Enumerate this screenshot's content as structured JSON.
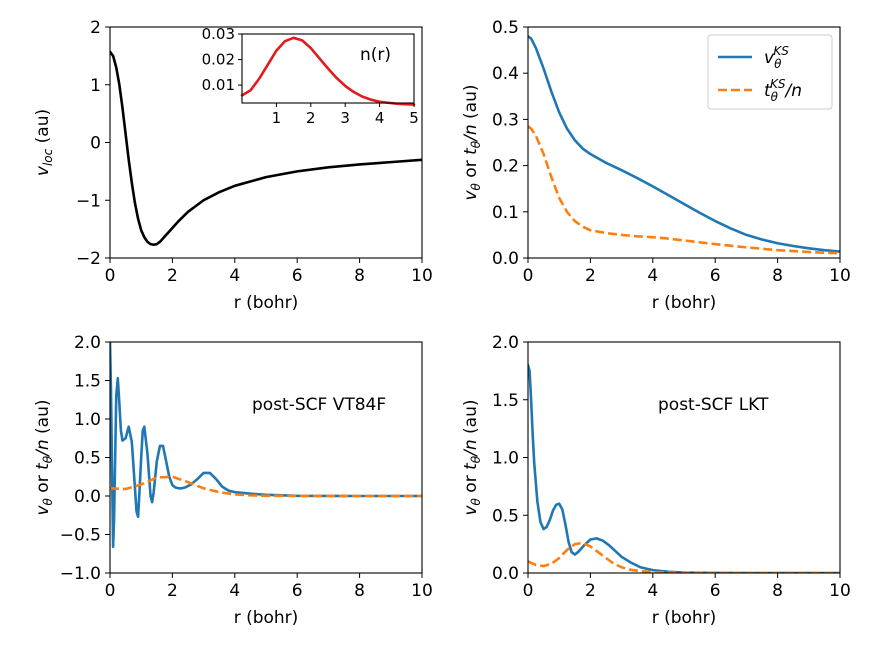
{
  "colors": {
    "blue": "#1f77b4",
    "orange": "#ff7f0e",
    "black": "#000000",
    "red": "#e31a1c"
  },
  "chart_data": [
    {
      "id": "top-left",
      "type": "line",
      "xlabel": "r (bohr)",
      "ylabel": "v_loc (au)",
      "xlim": [
        0,
        10
      ],
      "ylim": [
        -2,
        2
      ],
      "xticks": [
        "0",
        "2",
        "4",
        "6",
        "8",
        "10"
      ],
      "yticks": [
        "−2",
        "−1",
        "0",
        "1",
        "2"
      ],
      "series": [
        {
          "name": "v_loc",
          "color": "#000000",
          "dash": "solid",
          "x": [
            0,
            0.1,
            0.2,
            0.3,
            0.4,
            0.5,
            0.6,
            0.7,
            0.8,
            0.9,
            1.0,
            1.1,
            1.2,
            1.3,
            1.4,
            1.5,
            1.6,
            1.7,
            1.8,
            2.0,
            2.2,
            2.5,
            3.0,
            3.5,
            4.0,
            5.0,
            6.0,
            7.0,
            8.0,
            9.0,
            10.0
          ],
          "y": [
            1.57,
            1.5,
            1.3,
            1.0,
            0.6,
            0.15,
            -0.3,
            -0.7,
            -1.05,
            -1.32,
            -1.52,
            -1.64,
            -1.72,
            -1.76,
            -1.77,
            -1.76,
            -1.72,
            -1.66,
            -1.6,
            -1.48,
            -1.36,
            -1.2,
            -1.0,
            -0.86,
            -0.75,
            -0.6,
            -0.5,
            -0.43,
            -0.38,
            -0.34,
            -0.3
          ]
        }
      ],
      "inset": {
        "label": "n(r)",
        "xlim": [
          0,
          5
        ],
        "ylim": [
          0.003,
          0.03
        ],
        "xticks": [
          "1",
          "2",
          "3",
          "4",
          "5"
        ],
        "yticks": [
          "0.01",
          "0.02",
          "0.03"
        ],
        "series": [
          {
            "name": "n(r)",
            "color": "#e31a1c",
            "x": [
              0,
              0.25,
              0.5,
              0.75,
              1.0,
              1.25,
              1.5,
              1.75,
              2.0,
              2.25,
              2.5,
              2.75,
              3.0,
              3.25,
              3.5,
              3.75,
              4.0,
              4.5,
              5.0
            ],
            "y": [
              0.006,
              0.008,
              0.0125,
              0.018,
              0.0235,
              0.0272,
              0.0285,
              0.0275,
              0.0245,
              0.0205,
              0.0165,
              0.0128,
              0.0097,
              0.0073,
              0.0055,
              0.0043,
              0.0035,
              0.0027,
              0.0024
            ]
          }
        ]
      }
    },
    {
      "id": "top-right",
      "type": "line",
      "xlabel": "r (bohr)",
      "ylabel": "v_θ or t_θ/n (au)",
      "xlim": [
        0,
        10
      ],
      "ylim": [
        0,
        0.5
      ],
      "xticks": [
        "0",
        "2",
        "4",
        "6",
        "8",
        "10"
      ],
      "yticks": [
        "0.0",
        "0.1",
        "0.2",
        "0.3",
        "0.4",
        "0.5"
      ],
      "legend": {
        "position": "top-right",
        "entries": [
          "v_θ^KS",
          "t_θ^KS/n"
        ]
      },
      "series": [
        {
          "name": "v_θ^KS",
          "color": "#1f77b4",
          "dash": "solid",
          "x": [
            0,
            0.1,
            0.25,
            0.5,
            0.75,
            1.0,
            1.25,
            1.5,
            1.75,
            2.0,
            2.5,
            3.0,
            3.5,
            4.0,
            4.5,
            5.0,
            5.5,
            6.0,
            6.5,
            7.0,
            7.5,
            8.0,
            8.5,
            9.0,
            9.5,
            10.0
          ],
          "y": [
            0.48,
            0.475,
            0.455,
            0.41,
            0.36,
            0.315,
            0.28,
            0.255,
            0.237,
            0.225,
            0.206,
            0.19,
            0.173,
            0.155,
            0.136,
            0.117,
            0.098,
            0.08,
            0.064,
            0.05,
            0.04,
            0.032,
            0.026,
            0.021,
            0.017,
            0.014
          ]
        },
        {
          "name": "t_θ^KS/n",
          "color": "#ff7f0e",
          "dash": "dashed",
          "x": [
            0,
            0.1,
            0.25,
            0.5,
            0.75,
            1.0,
            1.25,
            1.5,
            1.75,
            2.0,
            2.5,
            3.0,
            3.5,
            4.0,
            4.5,
            5.0,
            6.0,
            7.0,
            8.0,
            9.0,
            10.0
          ],
          "y": [
            0.285,
            0.28,
            0.265,
            0.225,
            0.175,
            0.13,
            0.1,
            0.08,
            0.068,
            0.06,
            0.054,
            0.05,
            0.047,
            0.045,
            0.042,
            0.038,
            0.03,
            0.023,
            0.017,
            0.013,
            0.01
          ]
        }
      ]
    },
    {
      "id": "bottom-left",
      "type": "line",
      "xlabel": "r (bohr)",
      "ylabel": "v_θ or t_θ/n (au)",
      "xlim": [
        0,
        10
      ],
      "ylim": [
        -1,
        2
      ],
      "xticks": [
        "0",
        "2",
        "4",
        "6",
        "8",
        "10"
      ],
      "yticks": [
        "−1.0",
        "−0.5",
        "0.0",
        "0.5",
        "1.0",
        "1.5",
        "2.0"
      ],
      "annotation": "post-SCF VT84F",
      "series": [
        {
          "name": "v_θ",
          "color": "#1f77b4",
          "dash": "solid",
          "x": [
            0.0,
            0.03,
            0.07,
            0.1,
            0.13,
            0.17,
            0.2,
            0.25,
            0.3,
            0.35,
            0.4,
            0.5,
            0.6,
            0.7,
            0.8,
            0.85,
            0.9,
            0.95,
            1.0,
            1.05,
            1.1,
            1.2,
            1.3,
            1.35,
            1.4,
            1.5,
            1.6,
            1.7,
            1.8,
            1.9,
            2.0,
            2.1,
            2.2,
            2.3,
            2.4,
            2.6,
            2.8,
            3.0,
            3.2,
            3.4,
            3.6,
            3.8,
            4.0,
            4.5,
            5.0,
            6.0,
            7.0,
            8.0,
            9.0,
            10.0
          ],
          "y": [
            2.0,
            1.4,
            0.2,
            -0.66,
            -0.3,
            0.6,
            1.3,
            1.53,
            1.2,
            0.85,
            0.72,
            0.75,
            0.9,
            0.7,
            0.1,
            -0.2,
            -0.27,
            0.1,
            0.5,
            0.85,
            0.9,
            0.55,
            0.0,
            -0.08,
            0.05,
            0.45,
            0.65,
            0.65,
            0.45,
            0.25,
            0.14,
            0.11,
            0.1,
            0.1,
            0.11,
            0.15,
            0.22,
            0.3,
            0.3,
            0.22,
            0.12,
            0.07,
            0.05,
            0.03,
            0.015,
            0.003,
            0.001,
            0.0,
            0.0,
            0.0
          ]
        },
        {
          "name": "t_θ/n",
          "color": "#ff7f0e",
          "dash": "dashed",
          "x": [
            0,
            0.5,
            1.0,
            1.5,
            2.0,
            2.5,
            3.0,
            3.5,
            4.0,
            4.5,
            5.0,
            6.0,
            8.0,
            10.0
          ],
          "y": [
            0.1,
            0.09,
            0.15,
            0.24,
            0.25,
            0.18,
            0.1,
            0.05,
            0.02,
            0.008,
            0.003,
            0.001,
            0.0,
            0.0
          ]
        }
      ]
    },
    {
      "id": "bottom-right",
      "type": "line",
      "xlabel": "r (bohr)",
      "ylabel": "v_θ or t_θ/n (au)",
      "xlim": [
        0,
        10
      ],
      "ylim": [
        0,
        2
      ],
      "xticks": [
        "0",
        "2",
        "4",
        "6",
        "8",
        "10"
      ],
      "yticks": [
        "0.0",
        "0.5",
        "1.0",
        "1.5",
        "2.0"
      ],
      "annotation": "post-SCF LKT",
      "series": [
        {
          "name": "v_θ",
          "color": "#1f77b4",
          "dash": "solid",
          "x": [
            0.0,
            0.05,
            0.1,
            0.15,
            0.2,
            0.3,
            0.4,
            0.5,
            0.6,
            0.7,
            0.8,
            0.9,
            1.0,
            1.1,
            1.2,
            1.3,
            1.4,
            1.5,
            1.6,
            1.8,
            2.0,
            2.2,
            2.4,
            2.6,
            2.8,
            3.0,
            3.3,
            3.6,
            4.0,
            4.5,
            5.0,
            6.0,
            7.0,
            8.0,
            10.0
          ],
          "y": [
            1.8,
            1.75,
            1.5,
            1.2,
            0.95,
            0.62,
            0.44,
            0.38,
            0.4,
            0.46,
            0.54,
            0.59,
            0.6,
            0.55,
            0.42,
            0.27,
            0.18,
            0.16,
            0.18,
            0.24,
            0.29,
            0.3,
            0.28,
            0.24,
            0.19,
            0.14,
            0.09,
            0.05,
            0.025,
            0.01,
            0.004,
            0.001,
            0.0,
            0.0,
            0.0
          ]
        },
        {
          "name": "t_θ/n",
          "color": "#ff7f0e",
          "dash": "dashed",
          "x": [
            0,
            0.25,
            0.5,
            0.75,
            1.0,
            1.25,
            1.5,
            1.75,
            2.0,
            2.25,
            2.5,
            2.75,
            3.0,
            3.25,
            3.5,
            4.0,
            4.5,
            5.0,
            6.0,
            10.0
          ],
          "y": [
            0.1,
            0.07,
            0.06,
            0.08,
            0.13,
            0.2,
            0.25,
            0.26,
            0.23,
            0.18,
            0.13,
            0.08,
            0.05,
            0.03,
            0.02,
            0.008,
            0.003,
            0.001,
            0.0,
            0.0
          ]
        }
      ]
    }
  ]
}
